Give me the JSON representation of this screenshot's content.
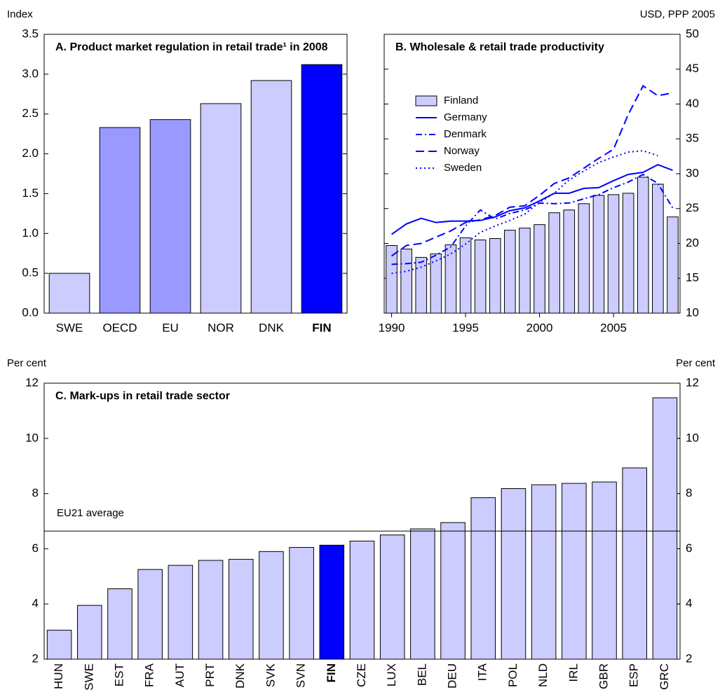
{
  "chart_data": [
    {
      "type": "bar",
      "title": "A. Product market regulation in retail trade¹ in 2008",
      "y_label": "Index",
      "y_axis_side": "left",
      "categories": [
        "SWE",
        "OECD",
        "EU",
        "NOR",
        "DNK",
        "FIN"
      ],
      "values": [
        0.5,
        2.33,
        2.43,
        2.63,
        2.92,
        3.12
      ],
      "colors": [
        "#ccccff",
        "#9999ff",
        "#9999ff",
        "#ccccff",
        "#ccccff",
        "#0000ff"
      ],
      "highlight": "FIN",
      "ylim": [
        0,
        3.5
      ],
      "yticks": [
        {
          "value": 0,
          "label": "0.0"
        },
        0.5,
        {
          "value": 1,
          "label": "1.0"
        },
        1.5,
        {
          "value": 2,
          "label": "2.0"
        },
        2.5,
        {
          "value": 3,
          "label": "3.0"
        },
        3.5
      ]
    },
    {
      "type": "combo",
      "title": "B. Wholesale & retail trade productivity",
      "y_label": "USD, PPP 2005",
      "y_axis_side": "right",
      "x": [
        1990,
        1991,
        1992,
        1993,
        1994,
        1995,
        1996,
        1997,
        1998,
        1999,
        2000,
        2001,
        2002,
        2003,
        2004,
        2005,
        2006,
        2007,
        2008,
        2009
      ],
      "xlim": [
        1989.5,
        2009.5
      ],
      "xticks": [
        1990,
        1995,
        2000,
        2005
      ],
      "ylim": [
        10,
        50
      ],
      "yticks": [
        10,
        15,
        20,
        25,
        30,
        35,
        40,
        45,
        50
      ],
      "legend": "upper left",
      "series": [
        {
          "name": "Finland",
          "type": "bar",
          "color": "#ccccff",
          "values": [
            19.7,
            19.2,
            18.0,
            18.5,
            19.8,
            20.8,
            20.5,
            20.7,
            21.9,
            22.2,
            22.7,
            24.4,
            24.8,
            25.7,
            26.9,
            27.0,
            27.2,
            29.5,
            28.5,
            23.8
          ]
        },
        {
          "name": "Germany",
          "type": "line",
          "dash": "solid",
          "color": "#0000ff",
          "values": [
            21.3,
            22.8,
            23.6,
            23.0,
            23.2,
            23.2,
            23.3,
            23.8,
            24.7,
            25.1,
            26.1,
            27.2,
            27.2,
            27.9,
            28.0,
            29.0,
            29.9,
            30.2,
            31.3,
            30.5
          ]
        },
        {
          "name": "Denmark",
          "type": "line",
          "dash": "dashdot",
          "color": "#0000ff",
          "values": [
            17.0,
            17.1,
            17.3,
            18.3,
            19.5,
            22.5,
            24.8,
            23.5,
            24.3,
            24.8,
            25.8,
            25.7,
            25.8,
            26.4,
            27.0,
            28.0,
            28.8,
            29.9,
            28.6,
            25.1
          ]
        },
        {
          "name": "Norway",
          "type": "line",
          "dash": "dashed",
          "color": "#0000ff",
          "values": [
            18.2,
            19.7,
            20.0,
            20.9,
            21.8,
            23.0,
            23.4,
            24.0,
            25.2,
            25.4,
            26.9,
            28.6,
            29.4,
            30.8,
            32.2,
            33.5,
            38.5,
            42.6,
            41.2,
            41.6
          ]
        },
        {
          "name": "Sweden",
          "type": "line",
          "dash": "dotted",
          "color": "#0000ff",
          "values": [
            15.7,
            16.0,
            16.6,
            17.5,
            18.5,
            19.9,
            21.6,
            22.5,
            23.3,
            24.2,
            25.9,
            27.2,
            29.1,
            30.4,
            31.6,
            32.4,
            33.1,
            33.3,
            32.6,
            null
          ]
        }
      ]
    },
    {
      "type": "bar",
      "title": "C. Mark-ups in retail trade sector",
      "y_label": "Per cent",
      "y2_label": "Per cent",
      "y_axis_side": "left",
      "categories": [
        "HUN",
        "SWE",
        "EST",
        "FRA",
        "AUT",
        "PRT",
        "DNK",
        "SVK",
        "SVN",
        "FIN",
        "CZE",
        "LUX",
        "BEL",
        "DEU",
        "ITA",
        "POL",
        "NLD",
        "IRL",
        "GBR",
        "ESP",
        "GRC"
      ],
      "values": [
        3.05,
        3.95,
        4.55,
        5.25,
        5.4,
        5.58,
        5.62,
        5.9,
        6.05,
        6.13,
        6.28,
        6.5,
        6.72,
        6.95,
        7.85,
        8.18,
        8.32,
        8.37,
        8.42,
        8.93,
        11.47
      ],
      "colors": [
        "#ccccff",
        "#ccccff",
        "#ccccff",
        "#ccccff",
        "#ccccff",
        "#ccccff",
        "#ccccff",
        "#ccccff",
        "#ccccff",
        "#0000ff",
        "#ccccff",
        "#ccccff",
        "#ccccff",
        "#ccccff",
        "#ccccff",
        "#ccccff",
        "#ccccff",
        "#ccccff",
        "#ccccff",
        "#ccccff",
        "#ccccff"
      ],
      "highlight": "FIN",
      "ylim": [
        2,
        12
      ],
      "yticks": [
        2,
        4,
        6,
        8,
        10,
        12
      ],
      "y2lim": [
        2,
        12
      ],
      "y2ticks": [
        2,
        4,
        6,
        8,
        10,
        12
      ],
      "reference_line": {
        "label": "EU21 average",
        "value": 6.64
      }
    }
  ]
}
